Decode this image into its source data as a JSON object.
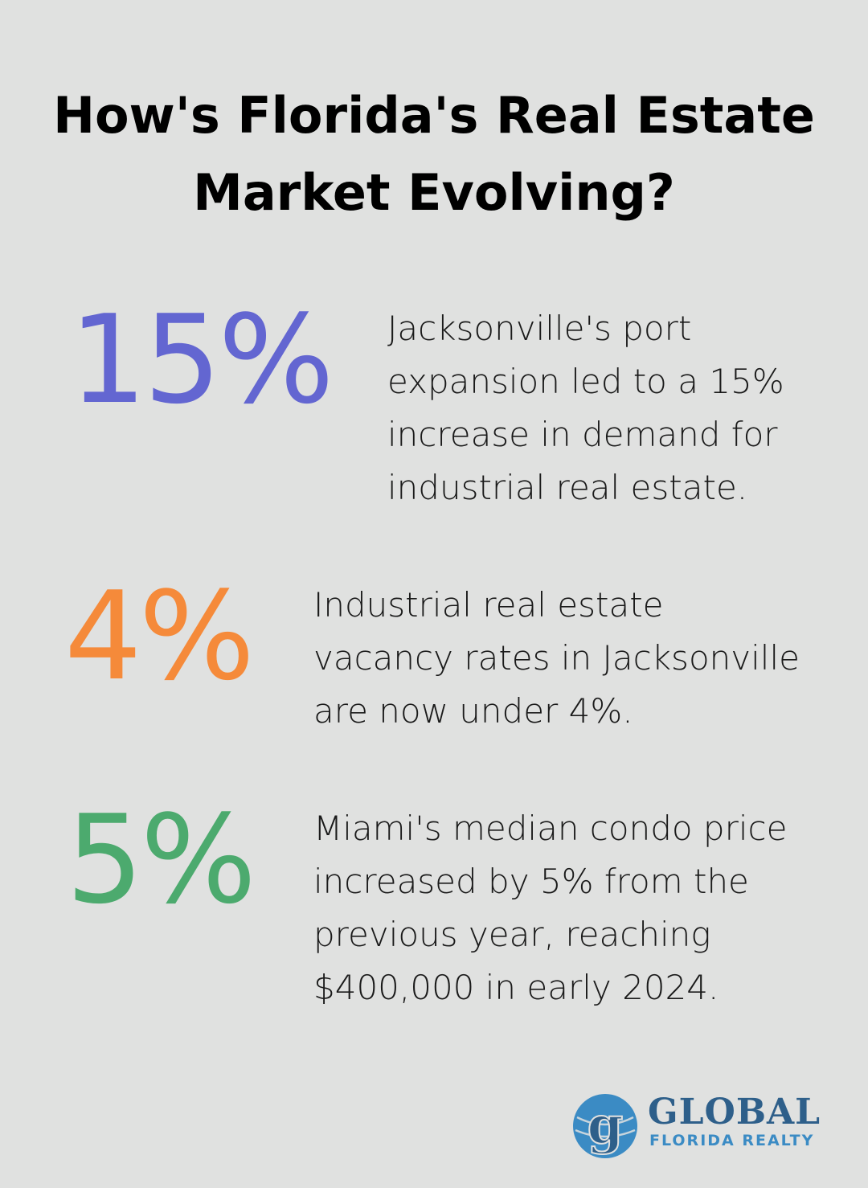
{
  "title": {
    "line1": "How's Florida's Real Estate",
    "line2": "Market Evolving?"
  },
  "stats": [
    {
      "value": "15%",
      "color": "#6366d1",
      "lines": [
        "Jacksonville's port",
        "expansion led to a 15%",
        "increase in demand for",
        "industrial real estate."
      ]
    },
    {
      "value": "4%",
      "color": "#f58a3a",
      "lines": [
        "Industrial real estate",
        "vacancy rates in Jacksonville",
        "are now under 4%."
      ]
    },
    {
      "value": "5%",
      "color": "#4caa6e",
      "lines": [
        "Miami's median condo price",
        "increased by 5% from the",
        "previous year, reaching",
        "$400,000 in early 2024."
      ]
    }
  ],
  "logo": {
    "mark": "g",
    "word": "GLOBAL",
    "sub": "FLORIDA REALTY",
    "primary_color": "#2e5f8a",
    "accent_color": "#3b8bc4"
  }
}
